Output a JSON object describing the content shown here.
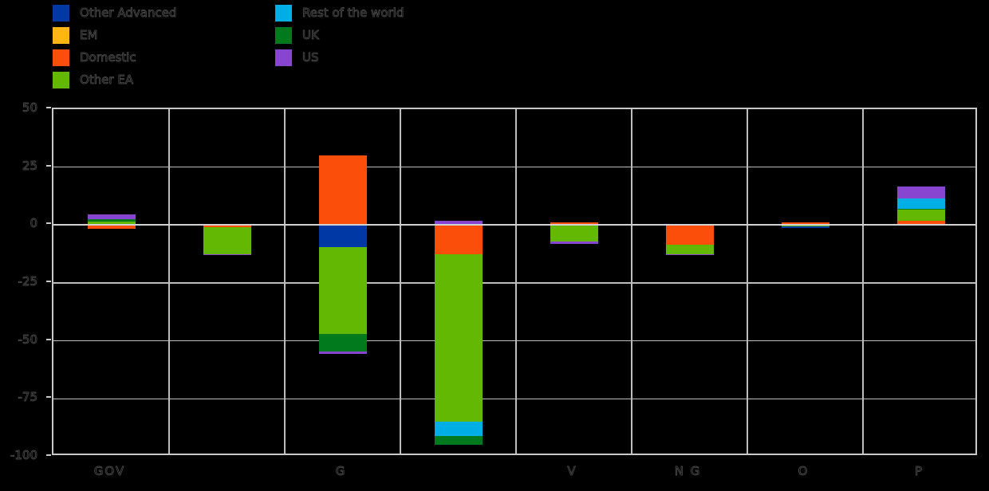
{
  "chart_data": {
    "type": "bar",
    "title": "",
    "subtitle": "",
    "grid": true,
    "legend_position": "top-left",
    "colors": {
      "other_advanced": "#0039A6",
      "em": "#FFB612",
      "domestic": "#FC4E0B",
      "other_ea": "#63B803",
      "rest_of_world": "#00AEE6",
      "uk": "#007A1C",
      "us": "#8845D0"
    },
    "legend": {
      "columns": [
        [
          {
            "key": "other_advanced",
            "label": "Other Advanced"
          },
          {
            "key": "em",
            "label": "EM"
          },
          {
            "key": "domestic",
            "label": "Domestic"
          },
          {
            "key": "other_ea",
            "label": "Other EA"
          }
        ],
        [
          {
            "key": "rest_of_world",
            "label": "Rest of the world"
          },
          {
            "key": "uk",
            "label": "UK"
          },
          {
            "key": "us",
            "label": "US"
          }
        ]
      ]
    },
    "y_axis": {
      "max": 50,
      "min": -100,
      "tick_values": [
        50,
        25,
        0,
        -25,
        -50,
        -75,
        -100
      ],
      "tick_labels": [
        "50",
        "25",
        "0",
        "-25",
        "-50",
        "-75",
        "-100"
      ]
    },
    "categories": [
      "GOV",
      "",
      "G",
      "",
      "V",
      "N G",
      "O",
      "P"
    ],
    "bars": [
      {
        "category": "GOV",
        "segments": [
          {
            "key": "other_ea",
            "value": 1.5
          },
          {
            "key": "uk",
            "value": 1
          },
          {
            "key": "us",
            "value": 2
          },
          {
            "key": "domestic",
            "value": -1.5
          }
        ]
      },
      {
        "category": "",
        "segments": [
          {
            "key": "domestic",
            "value": -1
          },
          {
            "key": "other_ea",
            "value": -11.5
          },
          {
            "key": "us",
            "value": -0.5
          }
        ]
      },
      {
        "category": "G",
        "segments": [
          {
            "key": "domestic",
            "value": 30
          },
          {
            "key": "other_advanced",
            "value": -9.5
          },
          {
            "key": "other_ea",
            "value": -37.5
          },
          {
            "key": "uk",
            "value": -7.5
          },
          {
            "key": "us",
            "value": -1
          }
        ]
      },
      {
        "category": "",
        "segments": [
          {
            "key": "other_advanced",
            "value": 0.5
          },
          {
            "key": "us",
            "value": 1.5
          },
          {
            "key": "domestic",
            "value": -12.5
          },
          {
            "key": "other_ea",
            "value": -72.5
          },
          {
            "key": "rest_of_world",
            "value": -6
          },
          {
            "key": "uk",
            "value": -4
          }
        ]
      },
      {
        "category": "V",
        "segments": [
          {
            "key": "domestic",
            "value": 1
          },
          {
            "key": "other_ea",
            "value": -7
          },
          {
            "key": "us",
            "value": -1
          }
        ]
      },
      {
        "category": "N G",
        "segments": [
          {
            "key": "domestic",
            "value": -8.5
          },
          {
            "key": "other_ea",
            "value": -4
          },
          {
            "key": "us",
            "value": -0.5
          }
        ]
      },
      {
        "category": "O",
        "segments": [
          {
            "key": "domestic",
            "value": 1
          },
          {
            "key": "other_ea",
            "value": -0.7
          },
          {
            "key": "other_advanced",
            "value": -0.7
          }
        ]
      },
      {
        "category": "P",
        "segments": [
          {
            "key": "domestic",
            "value": 2
          },
          {
            "key": "other_ea",
            "value": 4.5
          },
          {
            "key": "uk",
            "value": 0.5
          },
          {
            "key": "rest_of_world",
            "value": 4.5
          },
          {
            "key": "us",
            "value": 5
          }
        ]
      }
    ]
  }
}
